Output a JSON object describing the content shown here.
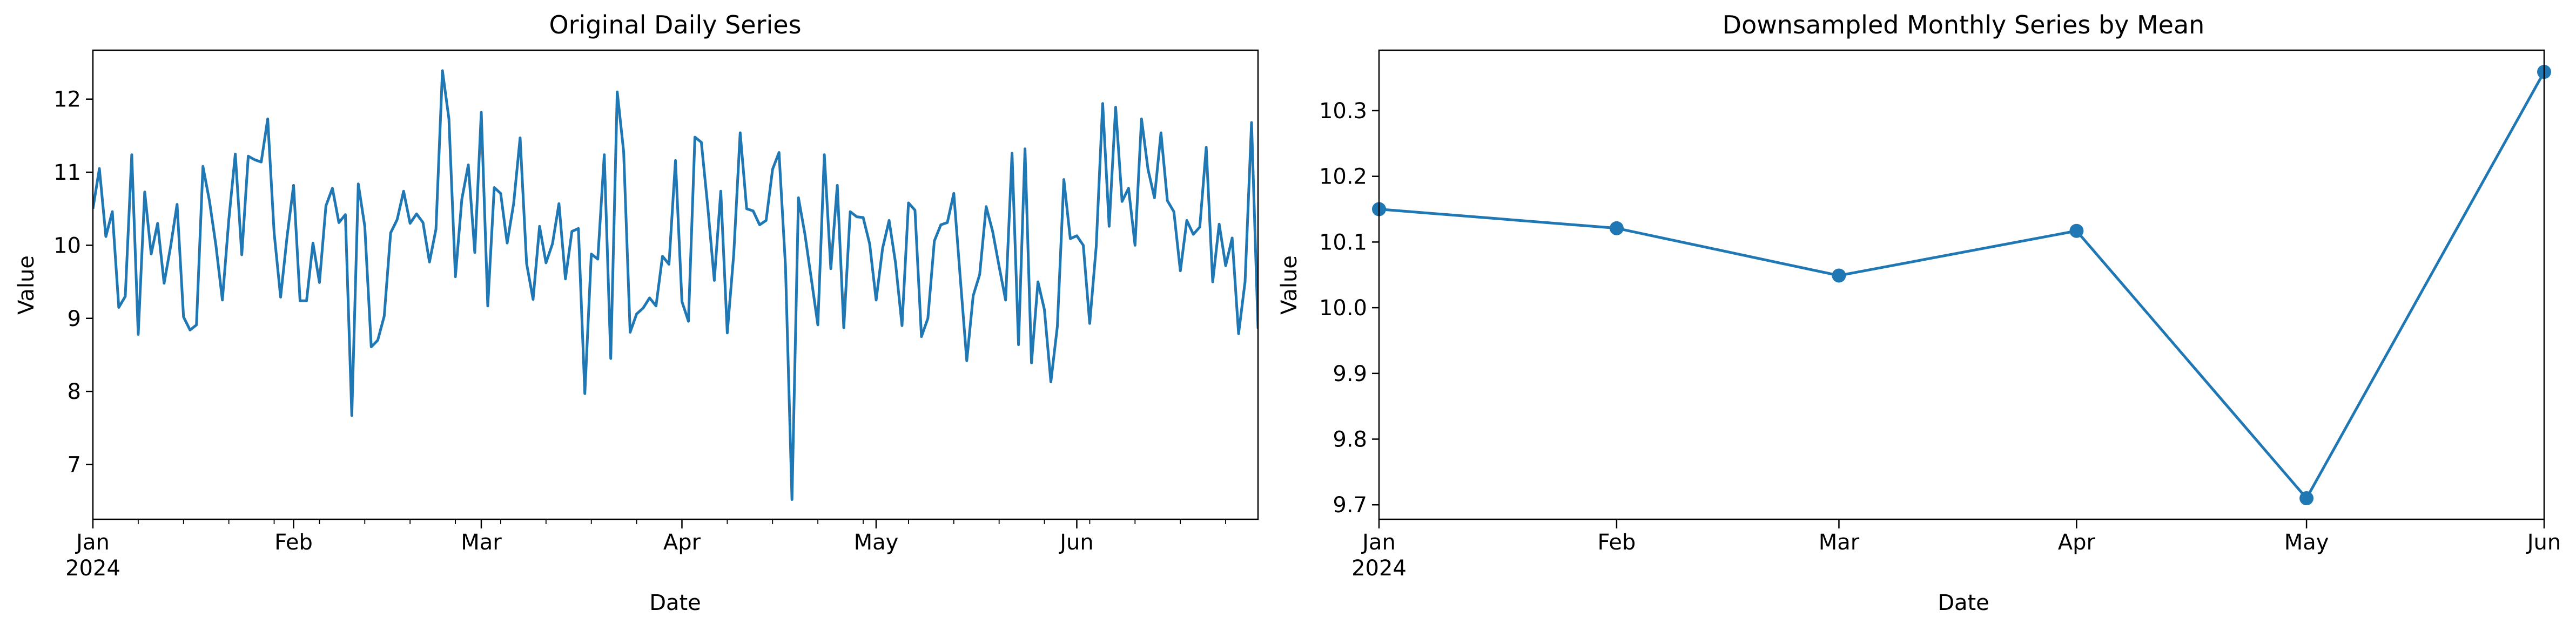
{
  "figure": {
    "background": "#ffffff",
    "line_color": "#1f77b4"
  },
  "chart_data": [
    {
      "type": "line",
      "title": "Original Daily Series",
      "xlabel": "Date",
      "ylabel": "Value",
      "x_start": "2024-01-01",
      "x_end": "2024-06-29",
      "xlim": [
        "2024-01-01",
        "2024-06-29"
      ],
      "ylim": [
        6.25,
        12.67
      ],
      "yticks": [
        7,
        8,
        9,
        10,
        11,
        12
      ],
      "xticks": [
        {
          "date": "2024-01-01",
          "label": "Jan",
          "sublabel": "2024"
        },
        {
          "date": "2024-02-01",
          "label": "Feb",
          "sublabel": ""
        },
        {
          "date": "2024-03-01",
          "label": "Mar",
          "sublabel": ""
        },
        {
          "date": "2024-04-01",
          "label": "Apr",
          "sublabel": ""
        },
        {
          "date": "2024-05-01",
          "label": "May",
          "sublabel": ""
        },
        {
          "date": "2024-06-01",
          "label": "Jun",
          "sublabel": ""
        }
      ],
      "grid": false,
      "series": [
        {
          "color": "#1f77b4",
          "marker": false,
          "values": [
            10.5,
            11.05,
            10.12,
            10.46,
            9.15,
            9.3,
            11.24,
            8.78,
            10.73,
            9.88,
            10.3,
            9.48,
            9.98,
            10.56,
            9.02,
            8.84,
            8.91,
            11.08,
            10.61,
            10.0,
            9.25,
            10.35,
            11.25,
            9.87,
            11.22,
            11.17,
            11.14,
            11.73,
            10.17,
            9.29,
            10.12,
            10.82,
            9.24,
            9.24,
            10.03,
            9.49,
            10.54,
            10.78,
            10.31,
            10.42,
            7.67,
            10.84,
            10.26,
            8.61,
            8.7,
            9.03,
            10.17,
            10.35,
            10.74,
            10.3,
            10.43,
            10.31,
            9.77,
            10.22,
            12.39,
            11.73,
            9.57,
            10.63,
            11.1,
            9.9,
            11.82,
            9.17,
            10.79,
            10.71,
            10.03,
            10.57,
            11.47,
            9.75,
            9.26,
            10.26,
            9.76,
            10.02,
            10.57,
            9.54,
            10.19,
            10.23,
            7.97,
            9.88,
            9.81,
            11.24,
            8.45,
            12.1,
            11.28,
            8.81,
            9.06,
            9.14,
            9.28,
            9.17,
            9.85,
            9.74,
            11.16,
            9.23,
            8.96,
            11.48,
            11.41,
            10.52,
            9.52,
            10.74,
            8.8,
            9.88,
            11.54,
            10.5,
            10.47,
            10.28,
            10.34,
            11.04,
            11.27,
            9.71,
            6.52,
            10.65,
            10.15,
            9.53,
            8.91,
            11.24,
            9.68,
            10.82,
            8.87,
            10.46,
            10.39,
            10.38,
            10.02,
            9.25,
            9.96,
            10.34,
            9.76,
            8.9,
            10.58,
            10.48,
            8.75,
            9.0,
            10.06,
            10.28,
            10.31,
            10.71,
            9.55,
            8.42,
            9.31,
            9.6,
            10.53,
            10.19,
            9.71,
            9.25,
            11.26,
            8.64,
            11.32,
            8.39,
            9.5,
            9.12,
            8.13,
            8.89,
            10.9,
            10.09,
            10.13,
            10.0,
            8.93,
            9.98,
            11.94,
            10.26,
            11.89,
            10.6,
            10.78,
            10.0,
            11.73,
            11.04,
            10.65,
            11.54,
            10.61,
            10.46,
            9.65,
            10.34,
            10.15,
            10.25,
            11.34,
            9.5,
            10.29,
            9.72,
            10.1,
            8.79,
            9.5,
            11.68,
            8.87,
            9.95
          ]
        }
      ]
    },
    {
      "type": "line",
      "title": "Downsampled Monthly Series by Mean",
      "xlabel": "Date",
      "ylabel": "Value",
      "xlim": [
        "2024-01-01",
        "2024-06-01"
      ],
      "ylim": [
        9.678,
        10.392
      ],
      "yticks": [
        9.7,
        9.8,
        9.9,
        10.0,
        10.1,
        10.2,
        10.3
      ],
      "xticks": [
        {
          "date": "2024-01-01",
          "label": "Jan",
          "sublabel": "2024"
        },
        {
          "date": "2024-02-01",
          "label": "Feb",
          "sublabel": ""
        },
        {
          "date": "2024-03-01",
          "label": "Mar",
          "sublabel": ""
        },
        {
          "date": "2024-04-01",
          "label": "Apr",
          "sublabel": ""
        },
        {
          "date": "2024-05-01",
          "label": "May",
          "sublabel": ""
        },
        {
          "date": "2024-06-01",
          "label": "Jun",
          "sublabel": ""
        }
      ],
      "grid": false,
      "series": [
        {
          "color": "#1f77b4",
          "marker": true,
          "x": [
            "2024-01-01",
            "2024-02-01",
            "2024-03-01",
            "2024-04-01",
            "2024-05-01",
            "2024-06-01"
          ],
          "values": [
            10.15,
            10.121,
            10.049,
            10.117,
            9.71,
            10.359
          ]
        }
      ]
    }
  ]
}
